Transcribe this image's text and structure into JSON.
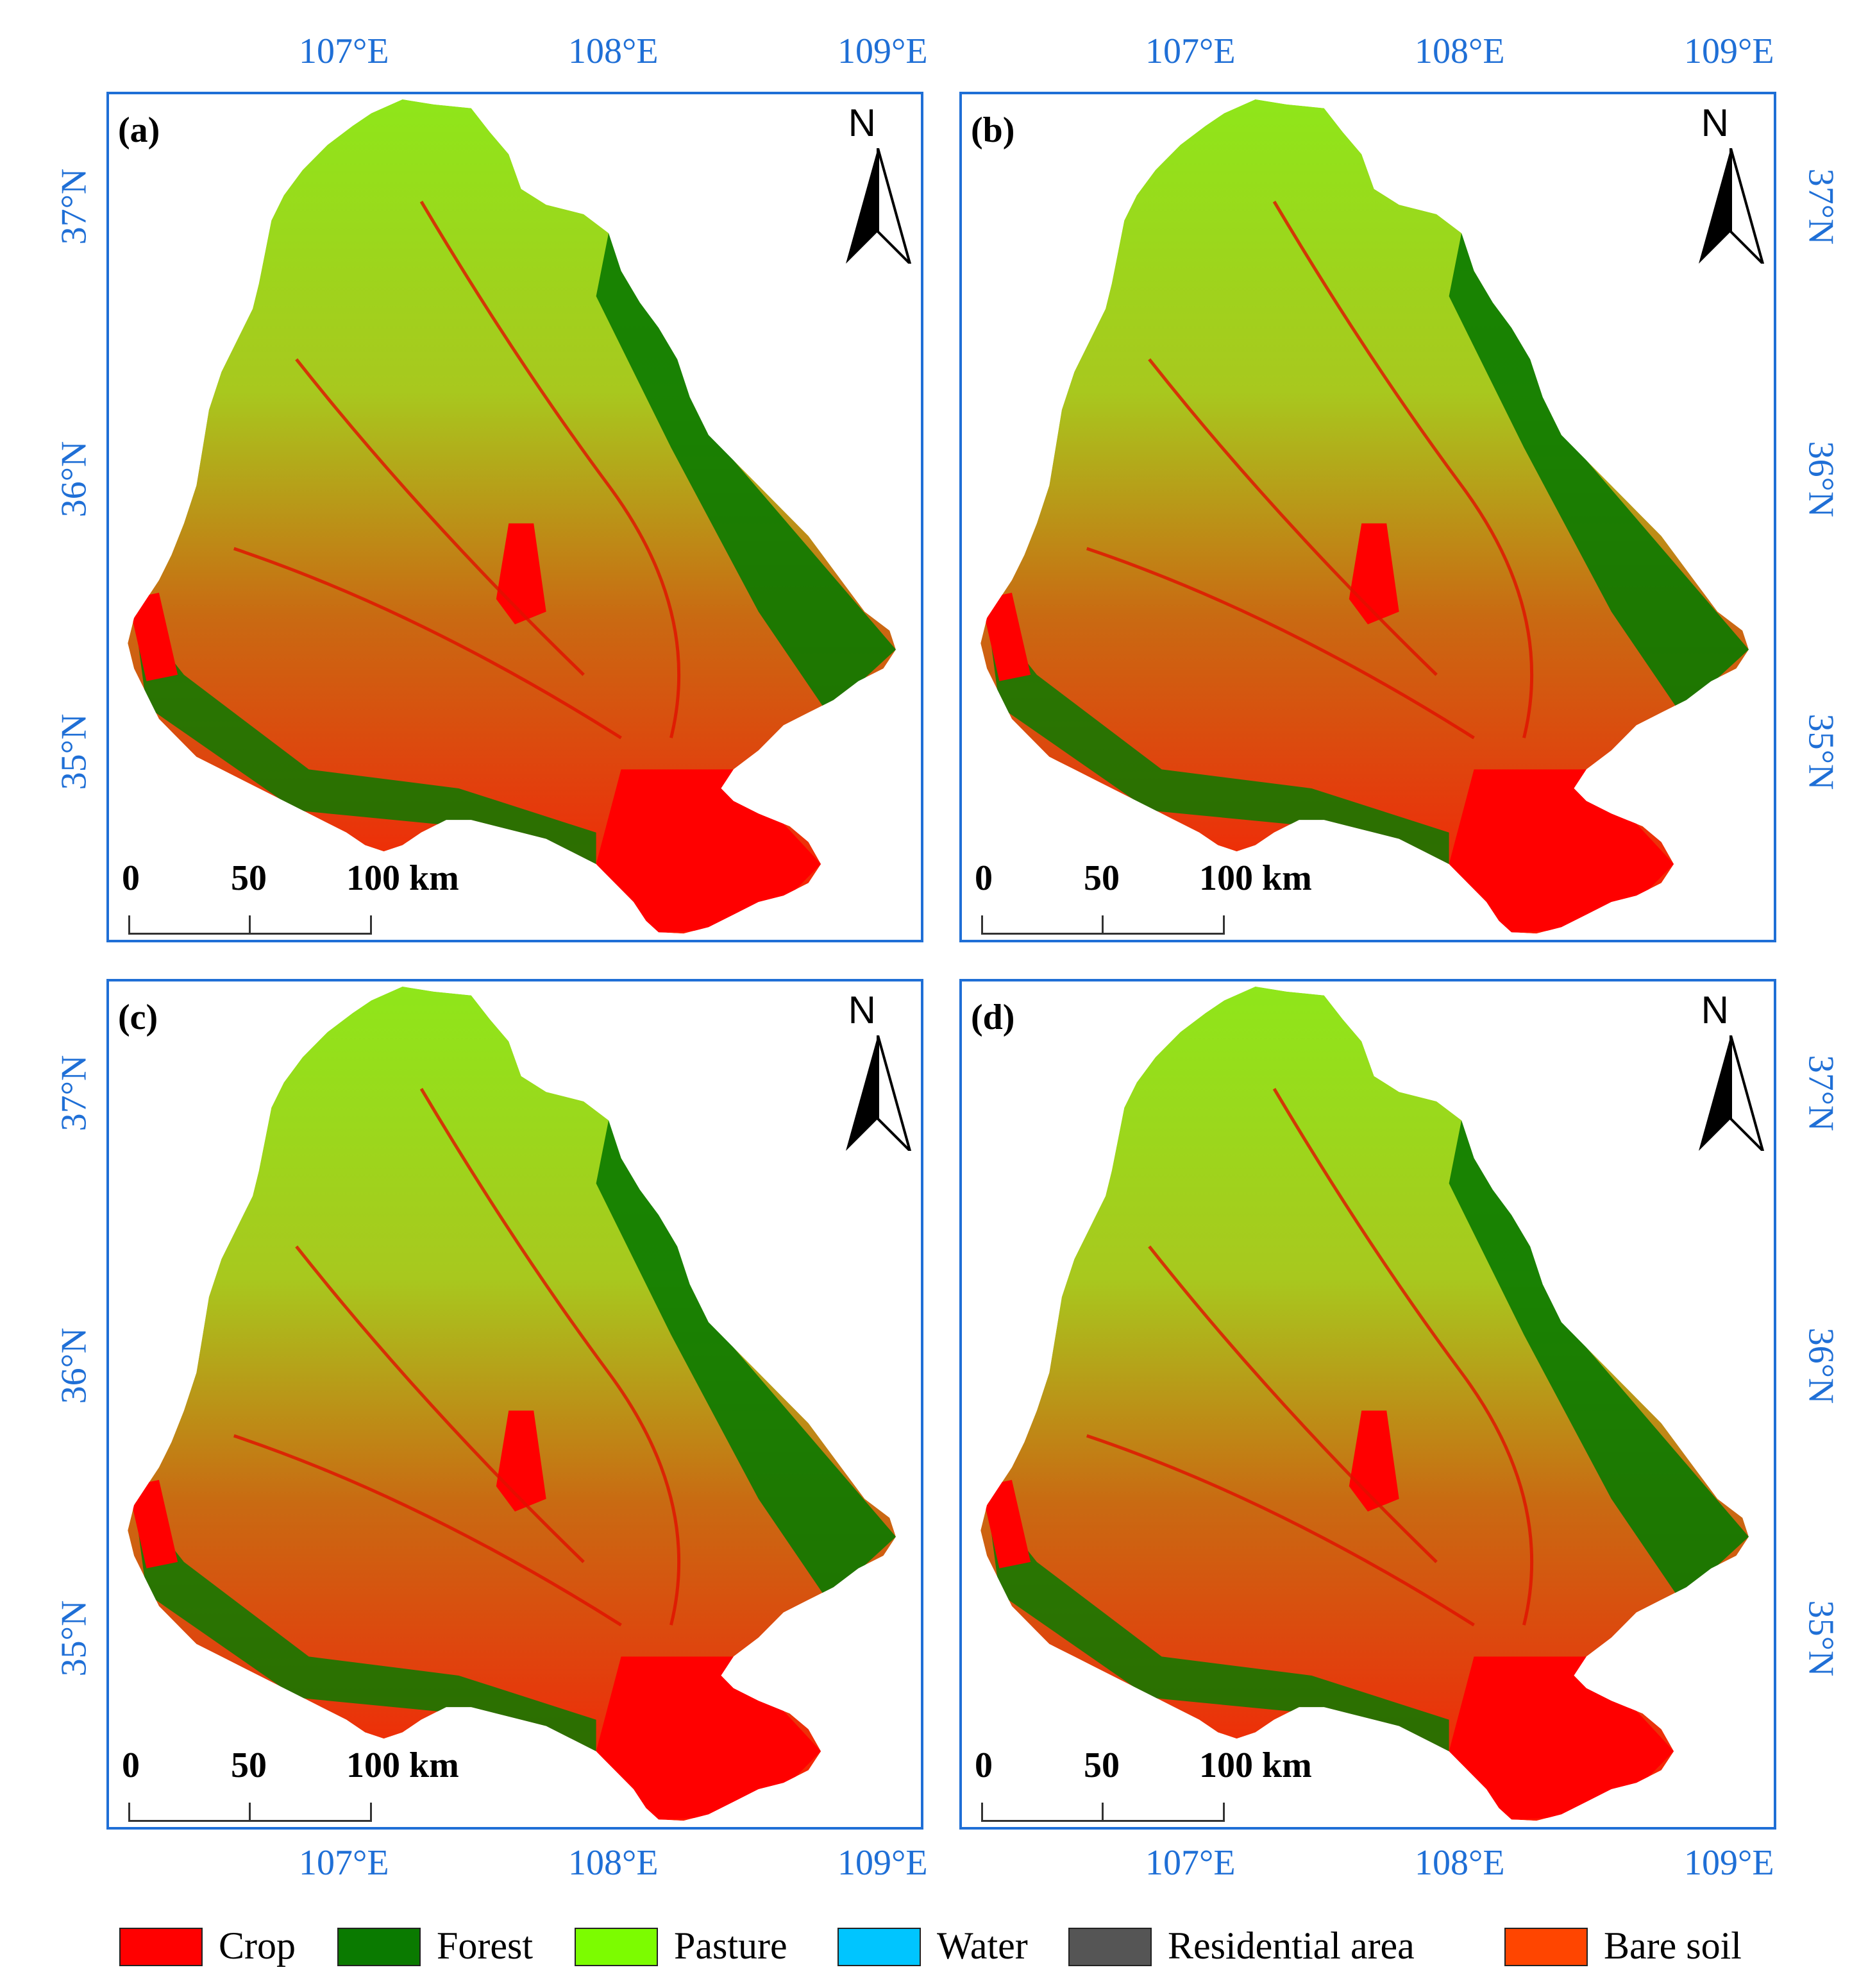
{
  "panels": [
    {
      "id": "a",
      "label": "(a)"
    },
    {
      "id": "b",
      "label": "(b)"
    },
    {
      "id": "c",
      "label": "(c)"
    },
    {
      "id": "d",
      "label": "(d)"
    }
  ],
  "north_label": "N",
  "scale": {
    "t0": "0",
    "t50": "50",
    "t100": "100 km"
  },
  "longitudes": [
    "107°E",
    "108°E",
    "109°E"
  ],
  "latitudes": [
    "37°N",
    "36°N",
    "35°N"
  ],
  "legend": [
    {
      "label": "Crop",
      "color": "#ff0000"
    },
    {
      "label": "Forest",
      "color": "#0a7a00"
    },
    {
      "label": "Pasture",
      "color": "#7cfc00"
    },
    {
      "label": "Water",
      "color": "#00c5ff"
    },
    {
      "label": "Residential area",
      "color": "#555555"
    },
    {
      "label": "Bare soil",
      "color": "#ff4500"
    }
  ]
}
